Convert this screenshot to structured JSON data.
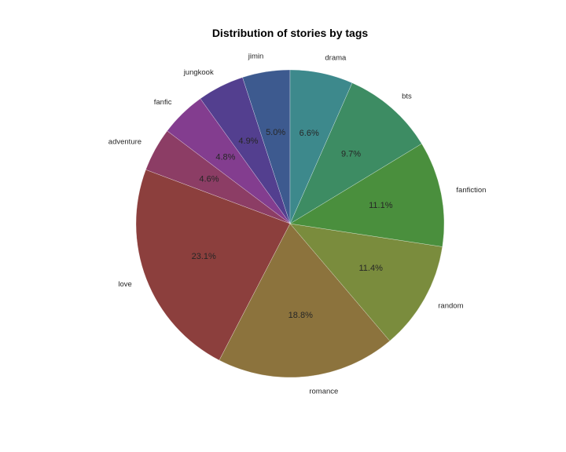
{
  "chart_data": {
    "type": "pie",
    "title": "Distribution of stories by tags",
    "start_angle_deg": 90,
    "direction": "counterclockwise",
    "slices": [
      {
        "label": "jimin",
        "value": 5.0,
        "pct_label": "5.0%",
        "color": "#3d5a8f"
      },
      {
        "label": "jungkook",
        "value": 4.9,
        "pct_label": "4.9%",
        "color": "#533f8f"
      },
      {
        "label": "fanfic",
        "value": 4.8,
        "pct_label": "4.8%",
        "color": "#833d8f"
      },
      {
        "label": "adventure",
        "value": 4.6,
        "pct_label": "4.6%",
        "color": "#8c3d65"
      },
      {
        "label": "love",
        "value": 23.1,
        "pct_label": "23.1%",
        "color": "#8c3f3d"
      },
      {
        "label": "romance",
        "value": 18.8,
        "pct_label": "18.8%",
        "color": "#8c733d"
      },
      {
        "label": "random",
        "value": 11.4,
        "pct_label": "11.4%",
        "color": "#7a8c3d"
      },
      {
        "label": "fanfiction",
        "value": 11.1,
        "pct_label": "11.1%",
        "color": "#4a8f3d"
      },
      {
        "label": "bts",
        "value": 9.7,
        "pct_label": "9.7%",
        "color": "#3d8c63"
      },
      {
        "label": "drama",
        "value": 6.6,
        "pct_label": "6.6%",
        "color": "#3d898c"
      }
    ]
  }
}
